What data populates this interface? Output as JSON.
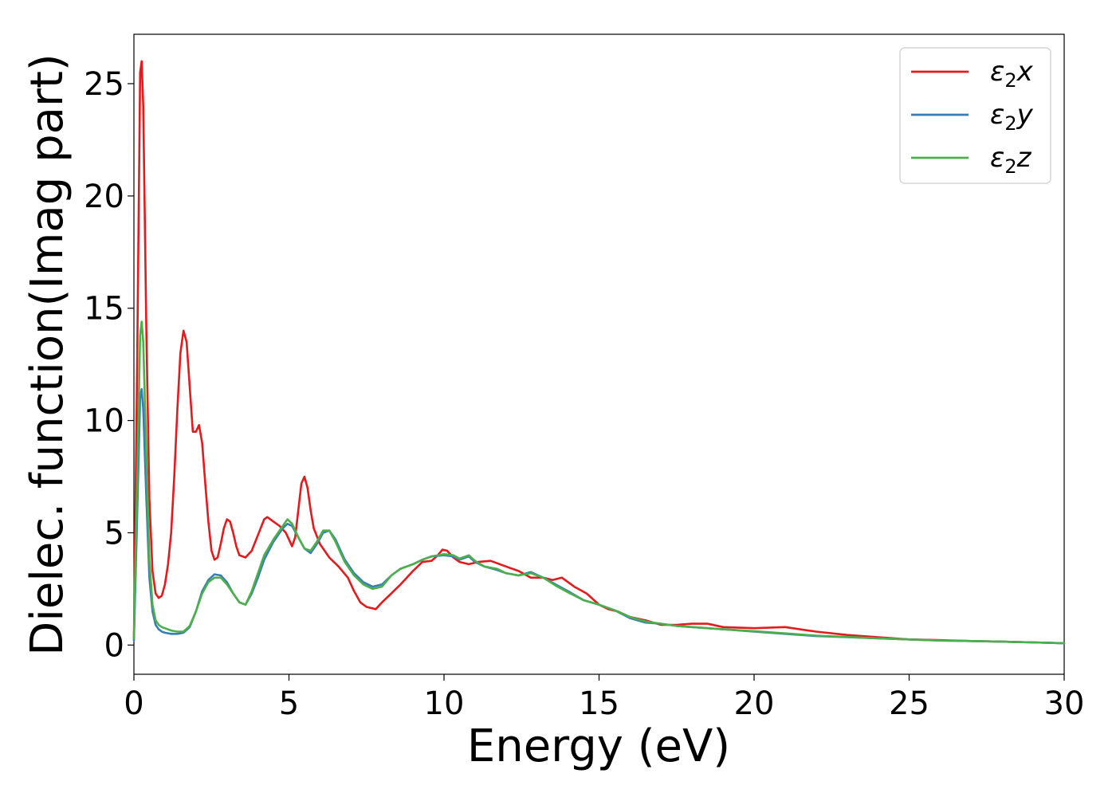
{
  "chart_data": {
    "type": "line",
    "title": "",
    "xlabel": "Energy (eV)",
    "ylabel": "Dielec. function(Imag part)",
    "xlim": [
      0,
      30
    ],
    "ylim": [
      -1.3,
      27.2
    ],
    "xticks": [
      0,
      5,
      10,
      15,
      20,
      25,
      30
    ],
    "xtick_labels": [
      "0",
      "5",
      "10",
      "15",
      "20",
      "25",
      "30"
    ],
    "yticks": [
      0,
      5,
      10,
      15,
      20,
      25
    ],
    "ytick_labels": [
      "0",
      "5",
      "10",
      "15",
      "20",
      "25"
    ],
    "grid": false,
    "legend_position": "top-right",
    "series": [
      {
        "name": "ε2x",
        "legend_base": "ε",
        "legend_sub": "2",
        "legend_tail": "x",
        "color": "#e41a1c",
        "x": [
          0,
          0.1,
          0.2,
          0.25,
          0.3,
          0.4,
          0.5,
          0.6,
          0.7,
          0.8,
          0.9,
          1.0,
          1.1,
          1.2,
          1.3,
          1.4,
          1.5,
          1.6,
          1.7,
          1.8,
          1.9,
          2.0,
          2.1,
          2.2,
          2.3,
          2.4,
          2.5,
          2.6,
          2.7,
          2.8,
          2.9,
          3.0,
          3.1,
          3.2,
          3.3,
          3.4,
          3.6,
          3.8,
          4.0,
          4.2,
          4.3,
          4.5,
          4.7,
          4.9,
          5.0,
          5.1,
          5.2,
          5.3,
          5.4,
          5.5,
          5.6,
          5.7,
          5.8,
          6.0,
          6.3,
          6.6,
          6.9,
          7.1,
          7.3,
          7.5,
          7.8,
          8.0,
          8.3,
          8.6,
          9.0,
          9.3,
          9.6,
          9.8,
          9.95,
          10.1,
          10.3,
          10.5,
          10.8,
          11.1,
          11.5,
          12.0,
          12.4,
          12.8,
          13.2,
          13.5,
          13.8,
          14.2,
          14.6,
          15.0,
          15.3,
          15.6,
          16.0,
          16.5,
          17.0,
          17.5,
          18.0,
          18.5,
          19.0,
          20.0,
          21.0,
          22.0,
          23.0,
          24.0,
          25.0,
          26.0,
          27.0,
          28.0,
          29.0,
          30.0
        ],
        "values": [
          0.3,
          12.0,
          25.5,
          26.0,
          24.0,
          14.0,
          6.5,
          3.3,
          2.3,
          2.1,
          2.2,
          2.7,
          3.6,
          5.0,
          7.5,
          10.5,
          13.0,
          14.0,
          13.5,
          11.5,
          9.5,
          9.5,
          9.8,
          9.0,
          7.2,
          5.5,
          4.2,
          3.8,
          3.9,
          4.5,
          5.2,
          5.6,
          5.5,
          5.0,
          4.4,
          4.0,
          3.9,
          4.2,
          4.9,
          5.6,
          5.7,
          5.5,
          5.3,
          5.0,
          4.7,
          4.4,
          4.8,
          6.0,
          7.2,
          7.5,
          7.0,
          6.0,
          5.2,
          4.5,
          3.9,
          3.5,
          3.0,
          2.4,
          1.9,
          1.7,
          1.6,
          1.9,
          2.3,
          2.7,
          3.3,
          3.7,
          3.75,
          4.0,
          4.25,
          4.2,
          3.9,
          3.7,
          3.6,
          3.7,
          3.75,
          3.5,
          3.3,
          3.0,
          3.0,
          2.9,
          3.0,
          2.6,
          2.3,
          1.8,
          1.6,
          1.5,
          1.25,
          1.1,
          0.9,
          0.9,
          0.95,
          0.95,
          0.8,
          0.75,
          0.8,
          0.6,
          0.45,
          0.35,
          0.25,
          0.22,
          0.18,
          0.15,
          0.12,
          0.08
        ]
      },
      {
        "name": "ε2y",
        "legend_base": "ε",
        "legend_sub": "2",
        "legend_tail": "y",
        "color": "#377eb8",
        "x": [
          0,
          0.1,
          0.2,
          0.25,
          0.3,
          0.4,
          0.5,
          0.6,
          0.7,
          0.8,
          0.9,
          1.0,
          1.2,
          1.4,
          1.6,
          1.8,
          2.0,
          2.2,
          2.4,
          2.6,
          2.8,
          3.0,
          3.2,
          3.4,
          3.6,
          3.8,
          4.0,
          4.2,
          4.5,
          4.8,
          4.95,
          5.1,
          5.3,
          5.5,
          5.7,
          5.9,
          6.1,
          6.3,
          6.5,
          6.8,
          7.1,
          7.4,
          7.7,
          8.0,
          8.3,
          8.6,
          9.0,
          9.3,
          9.6,
          10.0,
          10.3,
          10.5,
          10.8,
          11.0,
          11.3,
          11.7,
          12.0,
          12.4,
          12.8,
          13.2,
          13.6,
          14.0,
          14.5,
          15.0,
          15.5,
          16.0,
          16.5,
          17.0,
          17.5,
          18.0,
          18.5,
          19.0,
          20.0,
          21.0,
          22.0,
          23.0,
          24.0,
          25.0,
          26.0,
          27.0,
          28.0,
          29.0,
          30.0
        ],
        "values": [
          0.2,
          5.5,
          11.0,
          11.4,
          10.5,
          6.5,
          3.0,
          1.5,
          0.9,
          0.7,
          0.6,
          0.55,
          0.5,
          0.5,
          0.55,
          0.8,
          1.5,
          2.4,
          2.9,
          3.15,
          3.1,
          2.8,
          2.3,
          1.9,
          1.8,
          2.3,
          3.0,
          3.8,
          4.6,
          5.2,
          5.4,
          5.3,
          4.8,
          4.3,
          4.1,
          4.5,
          5.0,
          5.1,
          4.7,
          3.8,
          3.2,
          2.8,
          2.6,
          2.7,
          3.1,
          3.4,
          3.6,
          3.8,
          3.95,
          4.0,
          3.95,
          3.8,
          3.95,
          3.7,
          3.5,
          3.35,
          3.2,
          3.1,
          3.25,
          3.0,
          2.7,
          2.4,
          2.0,
          1.8,
          1.55,
          1.2,
          1.0,
          0.95,
          0.85,
          0.8,
          0.75,
          0.7,
          0.6,
          0.5,
          0.4,
          0.35,
          0.3,
          0.25,
          0.2,
          0.18,
          0.15,
          0.12,
          0.08
        ]
      },
      {
        "name": "ε2z",
        "legend_base": "ε",
        "legend_sub": "2",
        "legend_tail": "z",
        "color": "#4daf4a",
        "x": [
          0,
          0.1,
          0.2,
          0.25,
          0.3,
          0.4,
          0.5,
          0.6,
          0.7,
          0.8,
          0.9,
          1.0,
          1.2,
          1.4,
          1.6,
          1.8,
          2.0,
          2.2,
          2.4,
          2.6,
          2.8,
          3.0,
          3.2,
          3.4,
          3.6,
          3.8,
          4.0,
          4.2,
          4.5,
          4.8,
          4.95,
          5.1,
          5.3,
          5.5,
          5.7,
          5.9,
          6.1,
          6.3,
          6.5,
          6.8,
          7.1,
          7.4,
          7.7,
          8.0,
          8.3,
          8.6,
          9.0,
          9.3,
          9.6,
          10.0,
          10.3,
          10.5,
          10.8,
          11.0,
          11.3,
          11.7,
          12.0,
          12.4,
          12.8,
          13.2,
          13.6,
          14.0,
          14.5,
          15.0,
          15.5,
          16.0,
          16.5,
          17.0,
          17.5,
          18.0,
          18.5,
          19.0,
          20.0,
          21.0,
          22.0,
          23.0,
          24.0,
          25.0,
          26.0,
          27.0,
          28.0,
          29.0,
          30.0
        ],
        "values": [
          0.3,
          7.0,
          13.8,
          14.4,
          13.5,
          8.5,
          3.8,
          1.8,
          1.1,
          0.9,
          0.8,
          0.75,
          0.65,
          0.6,
          0.6,
          0.85,
          1.5,
          2.3,
          2.8,
          3.0,
          3.0,
          2.7,
          2.3,
          1.9,
          1.8,
          2.4,
          3.2,
          4.0,
          4.7,
          5.3,
          5.6,
          5.4,
          4.8,
          4.3,
          4.2,
          4.6,
          5.1,
          5.1,
          4.6,
          3.7,
          3.1,
          2.7,
          2.5,
          2.6,
          3.1,
          3.4,
          3.6,
          3.8,
          3.95,
          4.05,
          4.0,
          3.85,
          4.0,
          3.75,
          3.5,
          3.4,
          3.2,
          3.1,
          3.2,
          3.0,
          2.65,
          2.35,
          2.0,
          1.8,
          1.55,
          1.25,
          1.05,
          0.95,
          0.85,
          0.8,
          0.75,
          0.7,
          0.62,
          0.52,
          0.42,
          0.36,
          0.3,
          0.25,
          0.2,
          0.18,
          0.15,
          0.12,
          0.08
        ]
      }
    ]
  }
}
